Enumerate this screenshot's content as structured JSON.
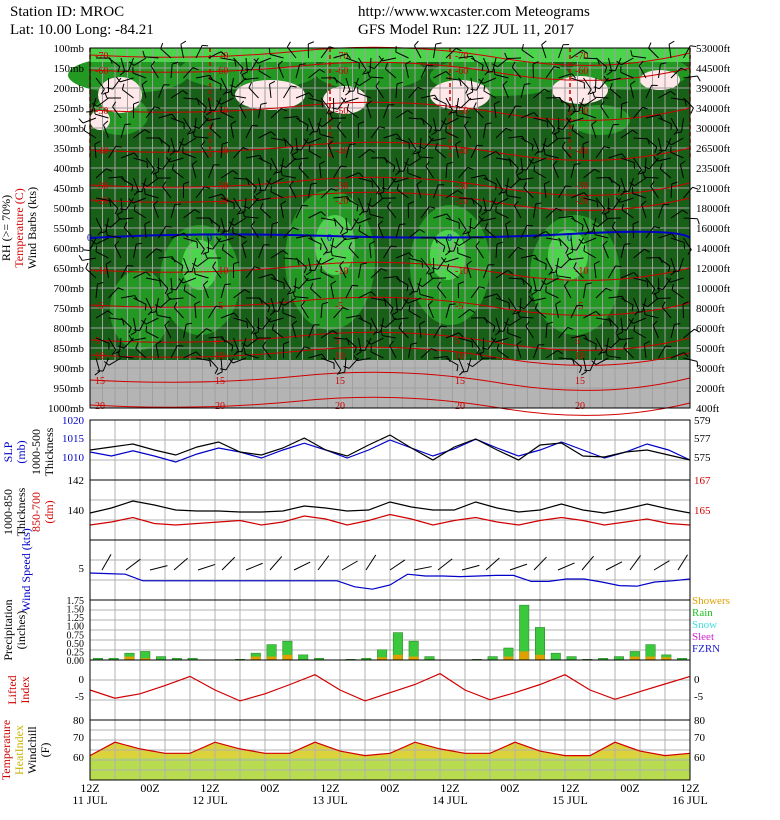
{
  "header": {
    "station_line": "Station ID: MROC",
    "latlon_line": "Lat:   10.00 Long:  -84.21",
    "site_line": "http://www.wxcaster.com Meteograms",
    "run_line": "GFS Model Run: 12Z JUL 11, 2017"
  },
  "colors": {
    "bg": "#ffffff",
    "grid": "#b0b0b0",
    "dark_green": "#186018",
    "mid_green": "#239823",
    "light_green": "#4cd44c",
    "pale_green": "#9cf59c",
    "ground": "#b4b4b4",
    "red": "#d00000",
    "blue": "#0000c8",
    "yellow": "#dcd23c",
    "bar_green": "#3cc83c"
  },
  "time_axis": {
    "ticks": [
      "12Z",
      "00Z",
      "12Z",
      "00Z",
      "12Z",
      "00Z",
      "12Z",
      "00Z",
      "12Z",
      "00Z",
      "12Z"
    ],
    "dates": [
      "11 JUL",
      "",
      "12 JUL",
      "",
      "13 JUL",
      "",
      "14 JUL",
      "",
      "15 JUL",
      "",
      "16 JUL"
    ]
  },
  "chart_data": [
    {
      "type": "heatmap",
      "name": "upper-air cross section",
      "ylabel_lines": [
        "RH (>= 70%)",
        "Temperature (C)",
        "Wind Barbs (kts)"
      ],
      "pressure_levels": [
        "100mb",
        "150mb",
        "200mb",
        "250mb",
        "300mb",
        "350mb",
        "400mb",
        "450mb",
        "500mb",
        "550mb",
        "600mb",
        "650mb",
        "700mb",
        "750mb",
        "800mb",
        "850mb",
        "900mb",
        "950mb",
        "1000mb"
      ],
      "height_labels": [
        "53000ft",
        "44500ft",
        "39000ft",
        "34000ft",
        "30000ft",
        "26500ft",
        "23500ft",
        "21000ft",
        "18000ft",
        "16000ft",
        "14000ft",
        "12000ft",
        "10000ft",
        "8000ft",
        "6000ft",
        "5000ft",
        "3000ft",
        "2000ft",
        "400ft"
      ],
      "freezing_level_label": "0",
      "temperature_labels": [
        "-70",
        "-60",
        "-50",
        "-40",
        "-30",
        "-20",
        "-10",
        "-5",
        "5",
        "10",
        "15",
        "20"
      ],
      "ground_below_mb": 875
    },
    {
      "type": "line",
      "name": "SLP and 1000-500 thickness",
      "ylabel_left": [
        "SLP",
        "(mb)"
      ],
      "ylabel_left2": [
        "1000-500",
        "Thickness"
      ],
      "left_ticks": [
        "1020",
        "1015",
        "1010"
      ],
      "right_ticks": [
        "579",
        "577",
        "575"
      ],
      "ylim_slp": [
        1005,
        1020
      ],
      "ylim_thk": [
        573,
        579
      ],
      "slp": [
        1012,
        1011,
        1012.3,
        1011,
        1009.5,
        1011.5,
        1013,
        1012,
        1010.5,
        1012.5,
        1014.2,
        1012.5,
        1010.5,
        1012.5,
        1015,
        1013,
        1011,
        1012.8,
        1015.2,
        1013,
        1011,
        1012.5,
        1014.5,
        1012.5,
        1010.5,
        1012,
        1014,
        1012.5,
        1010
      ],
      "thickness": [
        576,
        576.3,
        576.6,
        576,
        575.5,
        576.3,
        576.8,
        575.8,
        575.5,
        576.2,
        577.2,
        576,
        575.4,
        576.5,
        577.5,
        576.2,
        575,
        576.3,
        577.1,
        576,
        575,
        576.5,
        576.7,
        575.4,
        575.3,
        575.8,
        576,
        575.5,
        575
      ]
    },
    {
      "type": "line",
      "name": "1000-850 and 850-700 thickness",
      "ylabel_left": [
        "1000-850",
        "Thickness"
      ],
      "ylabel_left2": [
        "850-700",
        "(dm)"
      ],
      "left_ticks": [
        "142",
        "140"
      ],
      "right_ticks": [
        "167",
        "165"
      ],
      "ylim_1000_850": [
        136,
        142
      ],
      "ylim_850_700": [
        163,
        167
      ],
      "thk_1000_850": [
        138.7,
        139.2,
        139.9,
        139.5,
        139.0,
        138.9,
        138.9,
        138.8,
        138.8,
        138.9,
        139.4,
        139.2,
        138.9,
        139.0,
        139.8,
        139.3,
        139.0,
        139.0,
        139.8,
        139.2,
        138.8,
        139.0,
        139.6,
        139.0,
        138.7,
        139.1,
        139.6,
        139.1,
        138.7
      ],
      "thk_850_700": [
        164.0,
        164.2,
        164.5,
        164.1,
        164.0,
        164.1,
        164.2,
        164.3,
        164.0,
        164.2,
        164.6,
        164.4,
        164.0,
        164.3,
        164.7,
        164.4,
        164.0,
        164.3,
        164.5,
        164.2,
        164.0,
        164.3,
        164.5,
        164.3,
        164.0,
        164.2,
        164.4,
        164.1,
        164.0
      ]
    },
    {
      "type": "line",
      "name": "surface wind speed",
      "ylabel": "Wind Speed (kts)",
      "ticks": [
        "5"
      ],
      "ylim": [
        0,
        10
      ],
      "wind_speed": [
        4.5,
        4.4,
        4.3,
        3.2,
        3.2,
        3.2,
        3.2,
        3.2,
        3.2,
        3.2,
        3.2,
        3.2,
        3.2,
        3.2,
        3.2,
        2.2,
        1.8,
        2.5,
        4.3,
        4.0,
        4.0,
        3.9,
        4.0,
        4.1,
        4.1,
        3.1,
        3.1,
        3.5,
        3.5,
        3.0,
        2.4,
        2.3,
        3.0,
        3.2,
        3.5
      ]
    },
    {
      "type": "bar",
      "name": "precipitation",
      "ylabel": [
        "Precipitation",
        "(inches)"
      ],
      "ticks": [
        "1.75",
        "1.50",
        "1.25",
        "1.00",
        "0.75",
        "0.50",
        "0.25",
        "0.00"
      ],
      "ylim": [
        0,
        1.75
      ],
      "legend": [
        "Showers",
        "Rain",
        "Snow",
        "Sleet",
        "FZRN"
      ],
      "legend_colors": [
        "#e0a000",
        "#20c020",
        "#40e0e0",
        "#d020d0",
        "#2020d0"
      ],
      "total": [
        0.05,
        0.05,
        0.2,
        0.25,
        0.1,
        0.05,
        0.05,
        0,
        0,
        0.02,
        0.2,
        0.45,
        0.55,
        0.15,
        0.05,
        0,
        0.02,
        0.05,
        0.3,
        0.8,
        0.55,
        0.1,
        0,
        0,
        0.02,
        0.1,
        0.35,
        1.6,
        0.95,
        0.2,
        0.1,
        0.02,
        0.05,
        0.1,
        0.25,
        0.45,
        0.15,
        0.05
      ],
      "showers": [
        0,
        0,
        0.1,
        0.05,
        0,
        0,
        0,
        0,
        0,
        0,
        0.1,
        0.1,
        0.15,
        0,
        0,
        0,
        0,
        0,
        0.08,
        0.15,
        0.1,
        0,
        0,
        0,
        0,
        0,
        0.1,
        0.25,
        0.15,
        0,
        0,
        0,
        0,
        0,
        0.1,
        0.1,
        0.08,
        0
      ]
    },
    {
      "type": "line",
      "name": "lifted index",
      "ylabel": [
        "Lifted",
        "Index"
      ],
      "ticks": [
        "0",
        "-5"
      ],
      "ylim": [
        -8,
        3
      ],
      "lifted_index": [
        -2.5,
        -4.0,
        -3.2,
        -1.7,
        0,
        -2.5,
        -4.5,
        -3.2,
        -1.5,
        0.3,
        -2.5,
        -4.5,
        -3.0,
        -1.5,
        0.5,
        -2.5,
        -4.3,
        -3.0,
        -1.5,
        0.3,
        -2.5,
        -4.2,
        -2.8,
        -1.4,
        0
      ]
    },
    {
      "type": "area",
      "name": "temperature / heat index / windchill",
      "ylabel": [
        "Temperature",
        "HeatIndex",
        "Windchill",
        "(F)"
      ],
      "ticks": [
        "80",
        "70",
        "60"
      ],
      "ylim": [
        53,
        80
      ],
      "temperature": [
        64,
        70,
        67,
        65,
        65,
        70,
        67,
        65,
        65,
        70,
        66,
        64,
        65,
        70,
        67,
        65,
        65,
        70,
        66,
        64,
        64,
        70,
        66,
        64,
        65
      ]
    }
  ]
}
